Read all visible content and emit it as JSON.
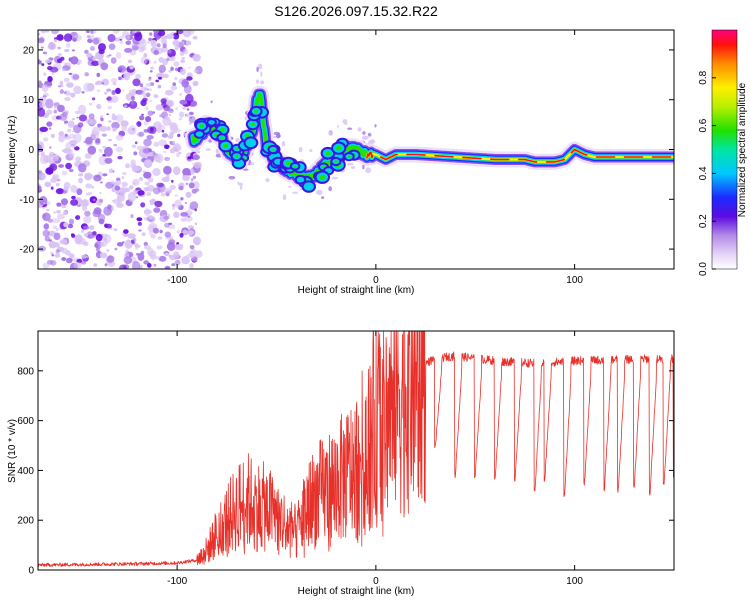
{
  "title": "S126.2026.097.15.32.R22",
  "colors": {
    "line": "#e8302a",
    "frame": "#000000",
    "background": "#ffffff",
    "noise_light": "#d9c2f5",
    "noise_mid": "#a473e8",
    "noise_dark": "#6d12e0"
  },
  "chart_data": [
    {
      "type": "heatmap",
      "name": "spectrogram",
      "title": "S126.2026.097.15.32.R22",
      "xlabel": "Height of straight line (km)",
      "ylabel": "Frequency (Hz)",
      "xlim": [
        -170,
        150
      ],
      "ylim": [
        -24,
        24
      ],
      "xticks": [
        -100,
        0,
        100
      ],
      "xtick_labels": [
        "-100",
        "0",
        "100"
      ],
      "yticks": [
        -20,
        -10,
        0,
        10,
        20
      ],
      "ytick_labels": [
        "-20",
        "-10",
        "0",
        "10",
        "20"
      ],
      "noise_region_xlim": [
        -170,
        -92
      ],
      "ridge": {
        "x": [
          -92,
          -88,
          -85,
          -82,
          -78,
          -75,
          -72,
          -68,
          -65,
          -62,
          -60,
          -58,
          -55,
          -50,
          -45,
          -40,
          -35,
          -30,
          -25,
          -22,
          -18,
          -15,
          -10,
          -5,
          0,
          5,
          10,
          20,
          40,
          60,
          75,
          80,
          90,
          95,
          100,
          105,
          110,
          130,
          150
        ],
        "y": [
          2,
          3,
          5,
          4,
          3,
          0,
          -1,
          -2,
          1,
          3,
          10,
          11,
          0,
          -2,
          -4,
          -5,
          -6,
          -5,
          -3,
          -2,
          -1,
          0,
          0,
          -1,
          -1,
          -2,
          -1,
          -1,
          -1.5,
          -2,
          -2,
          -2.5,
          -2.5,
          -2,
          0,
          -1,
          -1.5,
          -1.5,
          -1.5
        ]
      },
      "colorbar": {
        "label": "Normalized spectral amplitude",
        "range": [
          0,
          1
        ],
        "ticks": [
          0.0,
          0.2,
          0.4,
          0.6,
          0.8
        ],
        "tick_labels": [
          "0.0",
          "0.2",
          "0.4",
          "0.6",
          "0.8"
        ]
      }
    },
    {
      "type": "line",
      "name": "snr",
      "xlabel": "Height of straight line (km)",
      "ylabel": "SNR (10 * v/v)",
      "xlim": [
        -170,
        150
      ],
      "ylim": [
        0,
        960
      ],
      "xticks": [
        -100,
        0,
        100
      ],
      "xtick_labels": [
        "-100",
        "0",
        "100"
      ],
      "yticks": [
        0,
        200,
        400,
        600,
        800
      ],
      "ytick_labels": [
        "0",
        "200",
        "400",
        "600",
        "800"
      ],
      "envelope": {
        "x": [
          -170,
          -150,
          -120,
          -100,
          -90,
          -85,
          -80,
          -75,
          -70,
          -65,
          -60,
          -55,
          -50,
          -45,
          -40,
          -35,
          -30,
          -25,
          -20,
          -15,
          -10,
          -5,
          0,
          5,
          10,
          15,
          20,
          25,
          30,
          40,
          60,
          80,
          100,
          120,
          150
        ],
        "y": [
          20,
          22,
          25,
          28,
          40,
          80,
          150,
          200,
          250,
          280,
          260,
          250,
          220,
          180,
          150,
          250,
          300,
          320,
          350,
          380,
          420,
          500,
          600,
          620,
          700,
          760,
          800,
          830,
          850,
          860,
          840,
          830,
          840,
          845,
          850
        ]
      },
      "dips": {
        "x": [
          30,
          40,
          50,
          60,
          70,
          80,
          85,
          95,
          105,
          115,
          122,
          130,
          138,
          145,
          150
        ],
        "y": [
          500,
          380,
          380,
          360,
          360,
          310,
          360,
          300,
          350,
          320,
          320,
          330,
          310,
          340,
          380
        ]
      }
    }
  ]
}
